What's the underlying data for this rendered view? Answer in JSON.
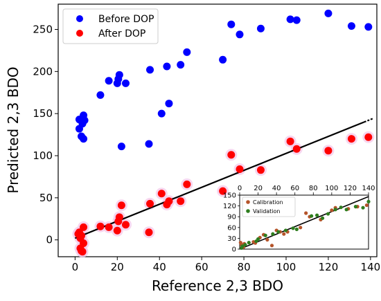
{
  "chart_data": [
    {
      "type": "scatter",
      "xlabel": "Reference 2,3 BDO",
      "ylabel": "Predicted 2,3 BDO",
      "xlim": [
        -8,
        143
      ],
      "ylim": [
        -20,
        280
      ],
      "xticks": [
        0,
        20,
        40,
        60,
        80,
        100,
        120,
        140
      ],
      "yticks": [
        0,
        50,
        100,
        150,
        200,
        250
      ],
      "legend_position": "top-left",
      "grid": false,
      "series": [
        {
          "name": "Before DOP",
          "color": "#0000ff",
          "points": [
            [
              2,
              143
            ],
            [
              2,
              132
            ],
            [
              3,
              123
            ],
            [
              3.5,
              138
            ],
            [
              4,
              120
            ],
            [
              4,
              148
            ],
            [
              4.5,
              142
            ],
            [
              12,
              172
            ],
            [
              16,
              189
            ],
            [
              20,
              186
            ],
            [
              20.5,
              191
            ],
            [
              21,
              196
            ],
            [
              22,
              111
            ],
            [
              24,
              186
            ],
            [
              35,
              114
            ],
            [
              35.5,
              202
            ],
            [
              41,
              150
            ],
            [
              43.5,
              206
            ],
            [
              44.5,
              162
            ],
            [
              50,
              208
            ],
            [
              53,
              223
            ],
            [
              70,
              214
            ],
            [
              74,
              256
            ],
            [
              78,
              244
            ],
            [
              88,
              251
            ],
            [
              102,
              262
            ],
            [
              105,
              261
            ],
            [
              120,
              269
            ],
            [
              131,
              254
            ],
            [
              139,
              253
            ]
          ]
        },
        {
          "name": "After DOP",
          "color": "#ff0000",
          "points": [
            [
              1.5,
              7
            ],
            [
              2,
              9
            ],
            [
              2.5,
              2
            ],
            [
              2.5,
              -10
            ],
            [
              3,
              -13
            ],
            [
              3,
              5
            ],
            [
              3.5,
              -14
            ],
            [
              4,
              15
            ],
            [
              4,
              -4
            ],
            [
              12,
              16
            ],
            [
              16,
              15
            ],
            [
              20,
              11
            ],
            [
              20.5,
              22
            ],
            [
              21,
              27
            ],
            [
              22,
              41
            ],
            [
              24,
              18
            ],
            [
              35,
              9
            ],
            [
              35.5,
              43
            ],
            [
              41,
              55
            ],
            [
              43.5,
              42
            ],
            [
              44.5,
              46
            ],
            [
              50,
              46
            ],
            [
              53,
              66
            ],
            [
              70,
              58
            ],
            [
              74,
              101
            ],
            [
              78,
              84
            ],
            [
              88,
              83
            ],
            [
              102,
              117
            ],
            [
              105,
              108
            ],
            [
              120,
              106
            ],
            [
              131,
              120
            ],
            [
              139,
              122
            ]
          ]
        }
      ],
      "fit_line": [
        [
          0,
          2
        ],
        [
          137,
          140
        ]
      ]
    },
    {
      "type": "scatter",
      "inset": true,
      "xlim": [
        0,
        140
      ],
      "ylim": [
        0,
        150
      ],
      "xticks": [
        0,
        20,
        40,
        60,
        80,
        100,
        120,
        140
      ],
      "yticks": [
        0,
        30,
        60,
        90,
        120,
        150
      ],
      "legend_position": "top-left",
      "series": [
        {
          "name": "Calibration",
          "color": "#b5542a",
          "points": [
            [
              1,
              18
            ],
            [
              2,
              12
            ],
            [
              4,
              5
            ],
            [
              5,
              15
            ],
            [
              15,
              20
            ],
            [
              17,
              17
            ],
            [
              22,
              32
            ],
            [
              26,
              40
            ],
            [
              30,
              26
            ],
            [
              35,
              10
            ],
            [
              40,
              52
            ],
            [
              44,
              48
            ],
            [
              48,
              42
            ],
            [
              52,
              48
            ],
            [
              66,
              60
            ],
            [
              72,
              100
            ],
            [
              76,
              90
            ],
            [
              88,
              82
            ],
            [
              100,
              108
            ],
            [
              104,
              115
            ],
            [
              118,
              112
            ],
            [
              128,
              118
            ],
            [
              138,
              122
            ]
          ]
        },
        {
          "name": "Validation",
          "color": "#2e7d1e",
          "points": [
            [
              2,
              3
            ],
            [
              3,
              8
            ],
            [
              6,
              12
            ],
            [
              10,
              18
            ],
            [
              18,
              22
            ],
            [
              20,
              28
            ],
            [
              28,
              38
            ],
            [
              36,
              42
            ],
            [
              42,
              48
            ],
            [
              50,
              52
            ],
            [
              58,
              58
            ],
            [
              62,
              55
            ],
            [
              78,
              92
            ],
            [
              84,
              94
            ],
            [
              90,
              86
            ],
            [
              96,
              98
            ],
            [
              104,
              110
            ],
            [
              110,
              116
            ],
            [
              116,
              110
            ],
            [
              126,
              118
            ],
            [
              134,
              115
            ],
            [
              140,
              132
            ]
          ]
        }
      ],
      "fit_line": [
        [
          0,
          0
        ],
        [
          140,
          146
        ]
      ]
    }
  ]
}
